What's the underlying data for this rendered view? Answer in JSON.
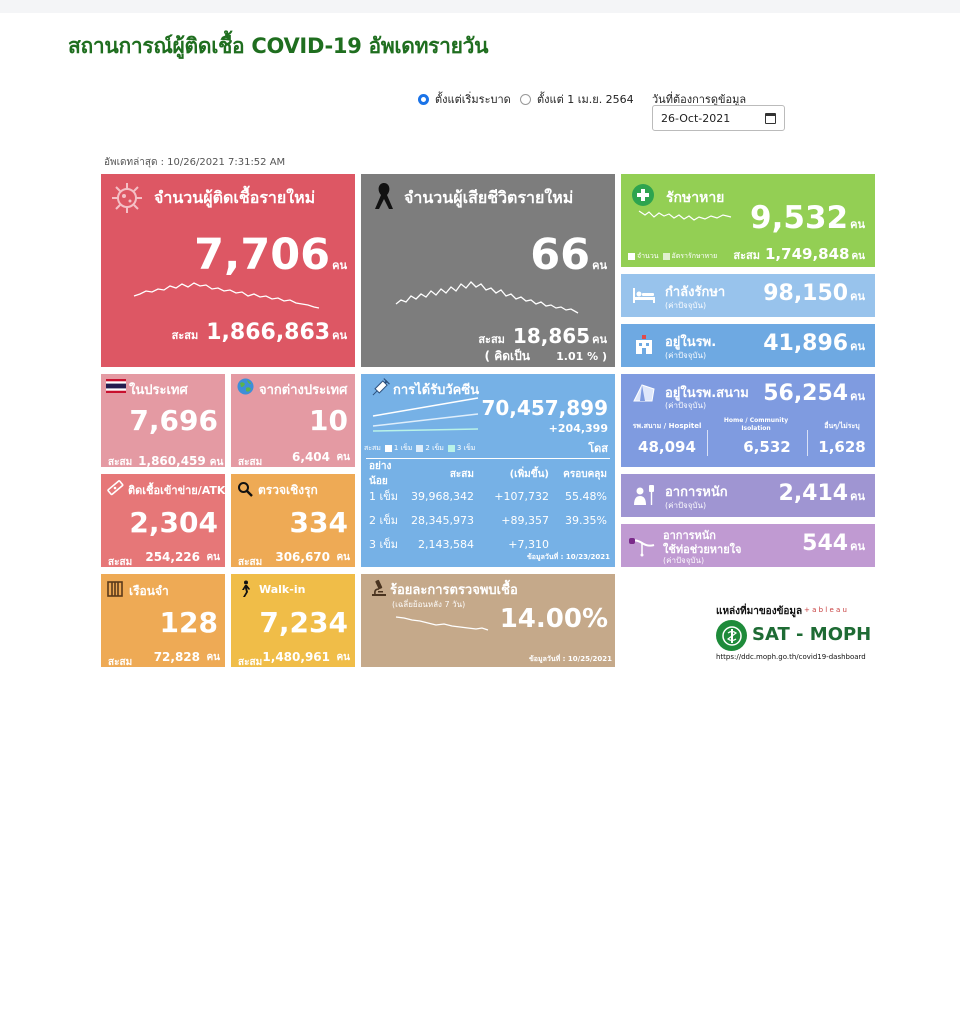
{
  "page_title": "สถานการณ์ผู้ติดเชื้อ COVID-19 อัพเดทรายวัน",
  "controls": {
    "radio_all": "ตั้งแต่เริ่มระบาด",
    "radio_apr": "ตั้งแต่ 1 เม.ย. 2564",
    "date_label": "วันที่ต้องการดูข้อมูล",
    "date_value": "26-Oct-2021"
  },
  "updated": "อัพเดทล่าสุด : 10/26/2021 7:31:52 AM",
  "new_cases": {
    "label": "จำนวนผู้ติดเชื้อรายใหม่",
    "value": "7,706",
    "unit": "คน",
    "cum_label": "สะสม",
    "cum_value": "1,866,863",
    "cum_unit": "คน"
  },
  "new_deaths": {
    "label": "จำนวนผู้เสียชีวิตรายใหม่",
    "value": "66",
    "unit": "คน",
    "cum_label": "สะสม",
    "cum_value": "18,865",
    "cum_unit": "คน",
    "rate_label": "( คิดเป็น",
    "rate_value": "1.01 % )"
  },
  "recovered": {
    "label": "รักษาหาย",
    "value": "9,532",
    "unit": "คน",
    "legend_count": "จำนวน",
    "legend_rate": "อัตรารักษาหาย",
    "cum_label": "สะสม",
    "cum_value": "1,749,848",
    "cum_unit": "คน"
  },
  "treating": {
    "label": "กำลังรักษา",
    "sub": "(ค่าปัจจุบัน)",
    "value": "98,150",
    "unit": "คน"
  },
  "hospital": {
    "label": "อยู่ในรพ.",
    "sub": "(ค่าปัจจุบัน)",
    "value": "41,896",
    "unit": "คน"
  },
  "domestic": {
    "label": "ในประเทศ",
    "value": "7,696",
    "cum_label": "สะสม",
    "cum_value": "1,860,459",
    "cum_unit": "คน"
  },
  "abroad": {
    "label": "จากต่างประเทศ",
    "value": "10",
    "cum_label": "สะสม",
    "cum_value": "6,404",
    "cum_unit": "คน"
  },
  "atk": {
    "label": "ติดเชื้อเข้าข่าย/ATK",
    "value": "2,304",
    "cum_label": "สะสม",
    "cum_value": "254,226",
    "cum_unit": "คน"
  },
  "proactive": {
    "label": "ตรวจเชิงรุก",
    "value": "334",
    "cum_label": "สะสม",
    "cum_value": "306,670",
    "cum_unit": "คน"
  },
  "prison": {
    "label": "เรือนจำ",
    "value": "128",
    "cum_label": "สะสม",
    "cum_value": "72,828",
    "cum_unit": "คน"
  },
  "walkin": {
    "label": "Walk-in",
    "value": "7,234",
    "cum_label": "สะสม",
    "cum_value": "1,480,961",
    "cum_unit": "คน"
  },
  "vaccine": {
    "label": "การได้รับวัคซีน",
    "total": "70,457,899",
    "increase": "+204,399",
    "unit": "โดส",
    "legend_prefix": "สะสม",
    "legend": [
      "1 เข็ม",
      "2 เข็ม",
      "3 เข็ม"
    ],
    "headers": [
      "อย่างน้อย",
      "สะสม",
      "(เพิ่มขึ้น)",
      "ครอบคลุม"
    ],
    "rows": [
      {
        "dose": "1 เข็ม",
        "cum": "39,968,342",
        "inc": "+107,732",
        "cov": "55.48%"
      },
      {
        "dose": "2 เข็ม",
        "cum": "28,345,973",
        "inc": "+89,357",
        "cov": "39.35%"
      },
      {
        "dose": "3 เข็ม",
        "cum": "2,143,584",
        "inc": "+7,310",
        "cov": ""
      }
    ],
    "data_date": "ข้อมูลวันที่ : 10/23/2021"
  },
  "positivity": {
    "label": "ร้อยละการตรวจพบเชื้อ",
    "sub": "(เฉลี่ยย้อนหลัง 7 วัน)",
    "value": "14.00%",
    "data_date": "ข้อมูลวันที่ : 10/25/2021"
  },
  "field_hospital": {
    "label": "อยู่ในรพ.สนาม",
    "sub": "(ค่าปัจจุบัน)",
    "value": "56,254",
    "unit": "คน",
    "cols": [
      {
        "label": "รพ.สนาม / Hospitel",
        "value": "48,094"
      },
      {
        "label": "Home / Community Isolation",
        "value": "6,532"
      },
      {
        "label": "อื่นๆ/ไม่ระบุ",
        "value": "1,628"
      }
    ]
  },
  "severe": {
    "label": "อาการหนัก",
    "sub": "(ค่าปัจจุบัน)",
    "value": "2,414",
    "unit": "คน"
  },
  "ventilator": {
    "label": "อาการหนัก",
    "label2": "ใช้ท่อช่วยหายใจ",
    "sub": "(ค่าปัจจุบัน)",
    "value": "544",
    "unit": "คน"
  },
  "source": {
    "label": "แหล่งที่มาของข้อมูล",
    "tableau": "+ a b l e a u",
    "brand": "SAT - MOPH",
    "url": "https://ddc.moph.go.th/covid19-dashboard"
  },
  "colors": {
    "red": "#dd5764",
    "grey": "#7d7d7d",
    "green": "#93cf54",
    "lightblue": "#98c3ec",
    "blue": "#6ea9e2",
    "pink": "#e49aa3",
    "salmon": "#e67778",
    "orange": "#eeaa55",
    "gold": "#f0bd48",
    "vaccine": "#76b1e6",
    "tan": "#c5a98a",
    "periwinkle": "#7f9be0",
    "purple": "#9f95d2",
    "lilac": "#c09ad2"
  }
}
